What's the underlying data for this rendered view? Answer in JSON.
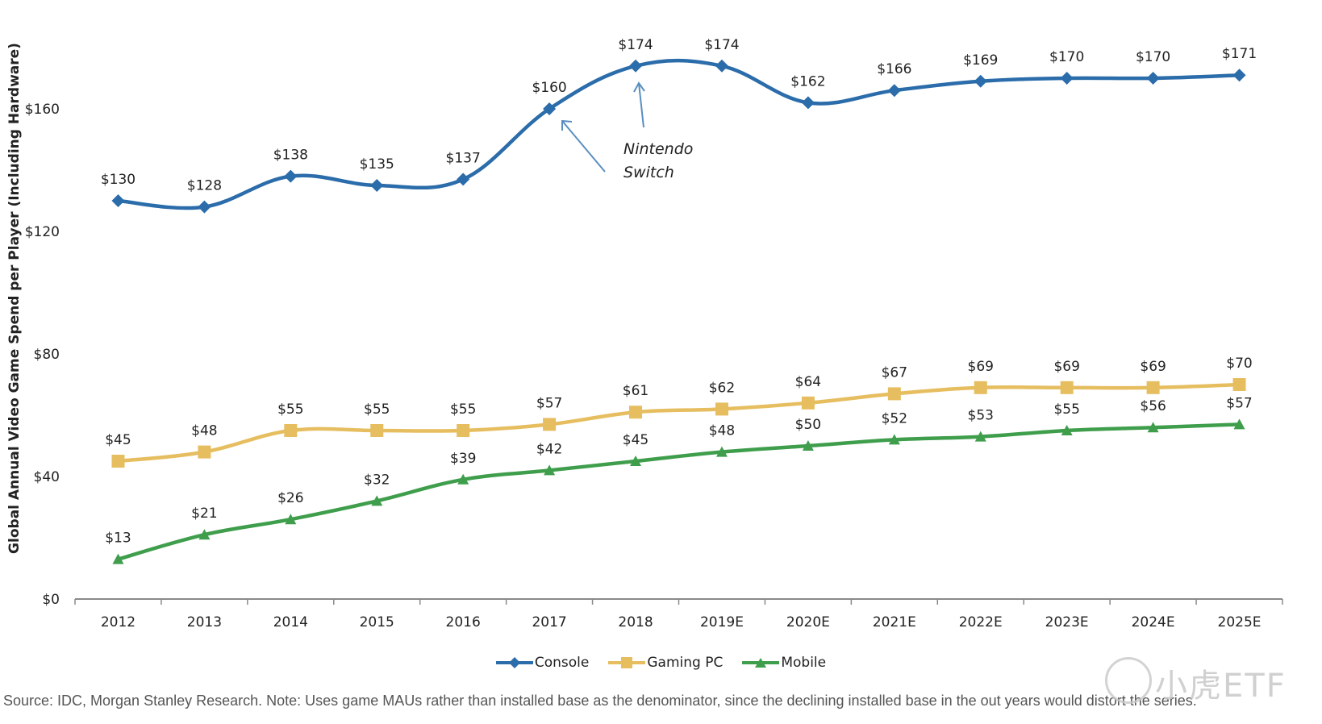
{
  "chart_data": {
    "type": "line",
    "title": "",
    "xlabel": "",
    "ylabel": "Global Annual Video Game Spend per Player (Including Hardware)",
    "categories": [
      "2012",
      "2013",
      "2014",
      "2015",
      "2016",
      "2017",
      "2018",
      "2019E",
      "2020E",
      "2021E",
      "2022E",
      "2023E",
      "2024E",
      "2025E"
    ],
    "ylim": [
      0,
      180
    ],
    "yticks": [
      0,
      40,
      80,
      120,
      160
    ],
    "ytick_labels": [
      "$0",
      "$40",
      "$80",
      "$120",
      "$160"
    ],
    "grid": false,
    "legend": "bottom",
    "series": [
      {
        "name": "Console",
        "color": "#2B6CAA",
        "marker": "diamond",
        "smooth": true,
        "values": [
          130,
          128,
          138,
          135,
          137,
          160,
          174,
          174,
          162,
          166,
          169,
          170,
          170,
          171
        ],
        "labels": [
          "$130",
          "$128",
          "$138",
          "$135",
          "$137",
          "$160",
          "$174",
          "$174",
          "$162",
          "$166",
          "$169",
          "$170",
          "$170",
          "$171"
        ]
      },
      {
        "name": "Gaming PC",
        "color": "#E6BE60",
        "marker": "square",
        "smooth": true,
        "values": [
          45,
          48,
          55,
          55,
          55,
          57,
          61,
          62,
          64,
          67,
          69,
          69,
          69,
          70
        ],
        "labels": [
          "$45",
          "$48",
          "$55",
          "$55",
          "$55",
          "$57",
          "$61",
          "$62",
          "$64",
          "$67",
          "$69",
          "$69",
          "$69",
          "$70"
        ]
      },
      {
        "name": "Mobile",
        "color": "#3F9E4C",
        "marker": "triangle",
        "smooth": true,
        "values": [
          13,
          21,
          26,
          32,
          39,
          42,
          45,
          48,
          50,
          52,
          53,
          55,
          56,
          57
        ],
        "labels": [
          "$13",
          "$21",
          "$26",
          "$32",
          "$39",
          "$42",
          "$45",
          "$48",
          "$50",
          "$52",
          "$53",
          "$55",
          "$56",
          "$57"
        ]
      }
    ],
    "annotations": [
      {
        "text_lines": [
          "Nintendo",
          "Switch"
        ],
        "points_to": [
          "2017",
          "2018"
        ],
        "series": "Console"
      }
    ]
  },
  "source_note": "Source: IDC, Morgan Stanley Research. Note: Uses game MAUs rather than installed base as the denominator, since the declining installed base in the out years would distort the series.",
  "watermark": "小虎ETF"
}
